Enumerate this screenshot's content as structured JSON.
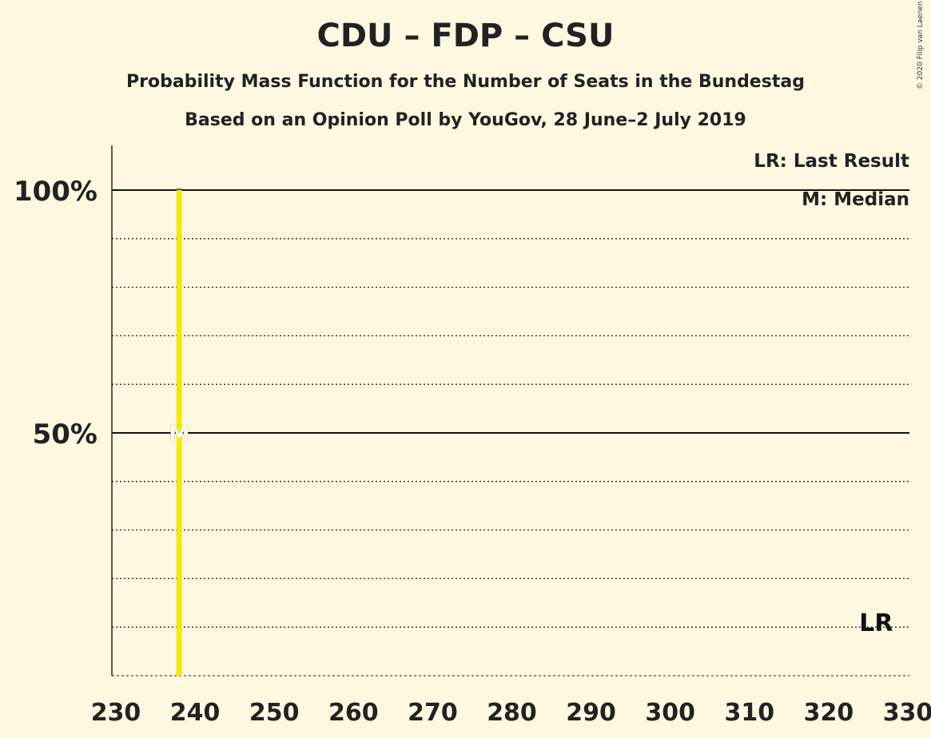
{
  "chart_data": {
    "type": "bar",
    "title": "CDU – FDP – CSU",
    "subtitle": "Probability Mass Function for the Number of Seats in the Bundestag",
    "subtitle2": "Based on an Opinion Poll by YouGov, 28 June–2 July 2019",
    "copyright": "© 2020 Filip van Laenen",
    "xlim": [
      230,
      330
    ],
    "ylim": [
      0,
      110
    ],
    "x_ticks": [
      230,
      240,
      250,
      260,
      270,
      280,
      290,
      300,
      310,
      320,
      330
    ],
    "y_ticks_labeled": [
      {
        "value": 50,
        "label": "50%"
      },
      {
        "value": 100,
        "label": "100%"
      }
    ],
    "y_gridlines_dotted": [
      0,
      10,
      20,
      30,
      40,
      60,
      70,
      80,
      90
    ],
    "bars": [
      {
        "seats": 238,
        "probability": 100,
        "label": "100%"
      }
    ],
    "median": {
      "seats": 238,
      "marker": "M"
    },
    "last_result": {
      "seats": 326,
      "label": "LR"
    },
    "legend": [
      "LR: Last Result",
      "M: Median"
    ],
    "legend_position": "top-right",
    "bar_color": "#F5E90B"
  }
}
